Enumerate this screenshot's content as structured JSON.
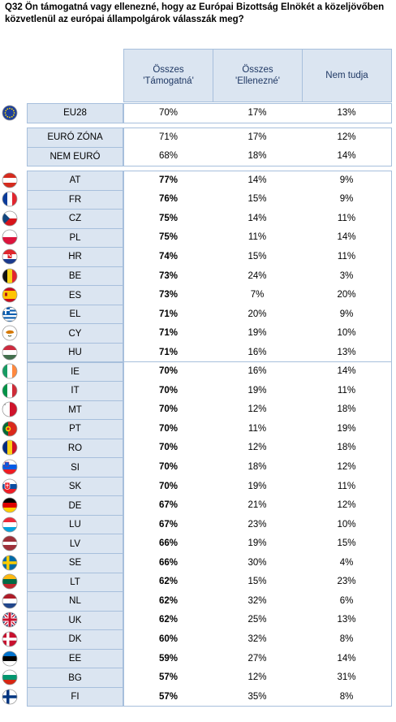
{
  "title": "Q32 Ön támogatná vagy ellenezné, hogy az Európai Bizottság Elnökét a közeljövőben közvetlenül az európai állampolgárok válasszák meg?",
  "chart_data": {
    "type": "table",
    "columns": [
      "Összes 'Támogatná'",
      "Összes 'Ellenezné'",
      "Nem tudja"
    ],
    "groups": [
      {
        "rows": [
          {
            "label": "EU28",
            "flag": "eu",
            "values": [
              "70%",
              "17%",
              "13%"
            ]
          }
        ]
      },
      {
        "rows": [
          {
            "label": "EURÓ ZÓNA",
            "flag": "",
            "values": [
              "71%",
              "17%",
              "12%"
            ]
          },
          {
            "label": "NEM EURÓ",
            "flag": "",
            "values": [
              "68%",
              "18%",
              "14%"
            ]
          }
        ]
      },
      {
        "rows": [
          {
            "label": "AT",
            "flag": "at",
            "values": [
              "77%",
              "14%",
              "9%"
            ]
          },
          {
            "label": "FR",
            "flag": "fr",
            "values": [
              "76%",
              "15%",
              "9%"
            ]
          },
          {
            "label": "CZ",
            "flag": "cz",
            "values": [
              "75%",
              "14%",
              "11%"
            ]
          },
          {
            "label": "PL",
            "flag": "pl",
            "values": [
              "75%",
              "11%",
              "14%"
            ]
          },
          {
            "label": "HR",
            "flag": "hr",
            "values": [
              "74%",
              "15%",
              "11%"
            ]
          },
          {
            "label": "BE",
            "flag": "be",
            "values": [
              "73%",
              "24%",
              "3%"
            ]
          },
          {
            "label": "ES",
            "flag": "es",
            "values": [
              "73%",
              "7%",
              "20%"
            ]
          },
          {
            "label": "EL",
            "flag": "el",
            "values": [
              "71%",
              "20%",
              "9%"
            ]
          },
          {
            "label": "CY",
            "flag": "cy",
            "values": [
              "71%",
              "19%",
              "10%"
            ]
          },
          {
            "label": "HU",
            "flag": "hu",
            "values": [
              "71%",
              "16%",
              "13%"
            ]
          },
          {
            "label": "IE",
            "flag": "ie",
            "values": [
              "70%",
              "16%",
              "14%"
            ]
          },
          {
            "label": "IT",
            "flag": "it",
            "values": [
              "70%",
              "19%",
              "11%"
            ]
          },
          {
            "label": "MT",
            "flag": "mt",
            "values": [
              "70%",
              "12%",
              "18%"
            ]
          },
          {
            "label": "PT",
            "flag": "pt",
            "values": [
              "70%",
              "11%",
              "19%"
            ]
          },
          {
            "label": "RO",
            "flag": "ro",
            "values": [
              "70%",
              "12%",
              "18%"
            ]
          },
          {
            "label": "SI",
            "flag": "si",
            "values": [
              "70%",
              "18%",
              "12%"
            ]
          },
          {
            "label": "SK",
            "flag": "sk",
            "values": [
              "70%",
              "19%",
              "11%"
            ]
          },
          {
            "label": "DE",
            "flag": "de",
            "values": [
              "67%",
              "21%",
              "12%"
            ]
          },
          {
            "label": "LU",
            "flag": "lu",
            "values": [
              "67%",
              "23%",
              "10%"
            ]
          },
          {
            "label": "LV",
            "flag": "lv",
            "values": [
              "66%",
              "19%",
              "15%"
            ]
          },
          {
            "label": "SE",
            "flag": "se",
            "values": [
              "66%",
              "30%",
              "4%"
            ]
          },
          {
            "label": "LT",
            "flag": "lt",
            "values": [
              "62%",
              "15%",
              "23%"
            ]
          },
          {
            "label": "NL",
            "flag": "nl",
            "values": [
              "62%",
              "32%",
              "6%"
            ]
          },
          {
            "label": "UK",
            "flag": "uk",
            "values": [
              "62%",
              "25%",
              "13%"
            ]
          },
          {
            "label": "DK",
            "flag": "dk",
            "values": [
              "60%",
              "32%",
              "8%"
            ]
          },
          {
            "label": "EE",
            "flag": "ee",
            "values": [
              "59%",
              "27%",
              "14%"
            ]
          },
          {
            "label": "BG",
            "flag": "bg",
            "values": [
              "57%",
              "12%",
              "31%"
            ]
          },
          {
            "label": "FI",
            "flag": "fi",
            "values": [
              "57%",
              "35%",
              "8%"
            ]
          }
        ]
      }
    ],
    "colors": {
      "header_bg": "#dbe5f1",
      "border": "#a7bfdc",
      "header_text": "#1f3864"
    }
  }
}
